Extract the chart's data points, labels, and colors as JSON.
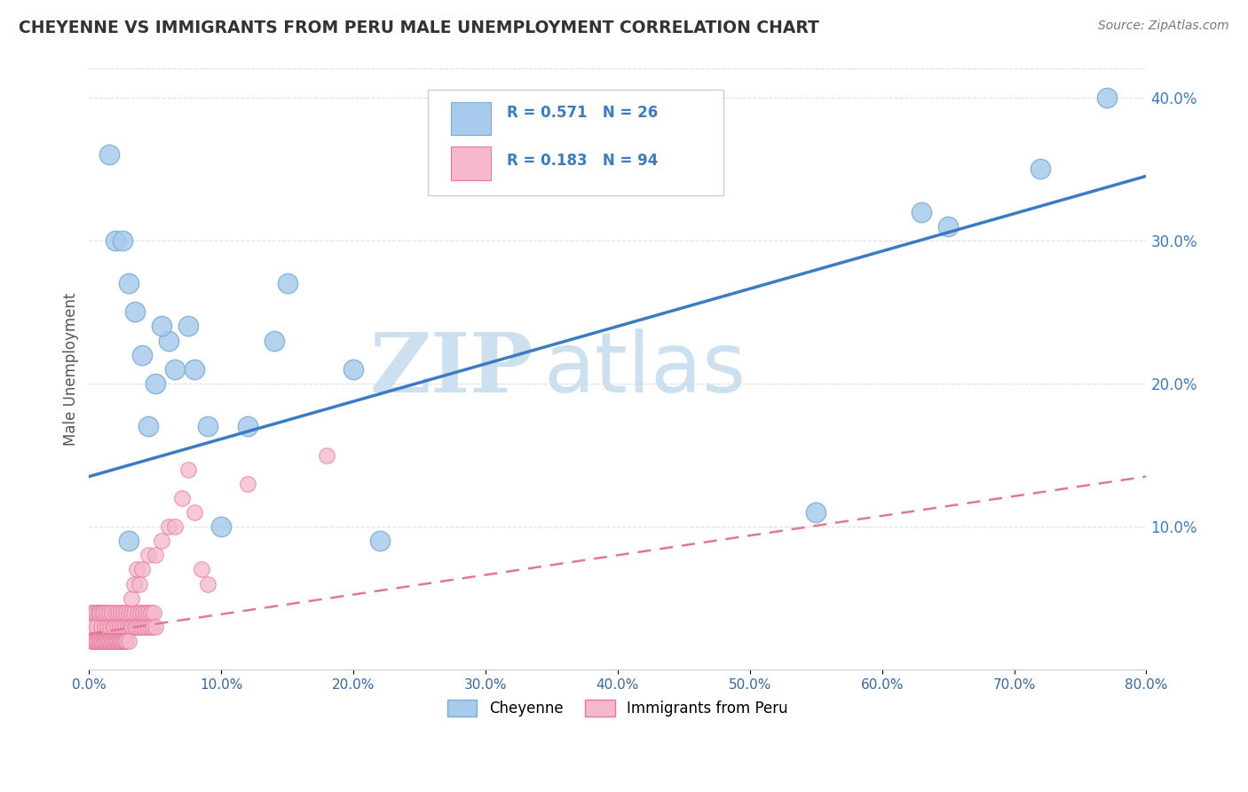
{
  "title": "CHEYENNE VS IMMIGRANTS FROM PERU MALE UNEMPLOYMENT CORRELATION CHART",
  "source": "Source: ZipAtlas.com",
  "ylabel": "Male Unemployment",
  "legend_label1": "Cheyenne",
  "legend_label2": "Immigrants from Peru",
  "R1": 0.571,
  "N1": 26,
  "R2": 0.183,
  "N2": 94,
  "xlim": [
    0.0,
    0.8
  ],
  "ylim": [
    0.0,
    0.42
  ],
  "x_ticks": [
    0.0,
    0.1,
    0.2,
    0.3,
    0.4,
    0.5,
    0.6,
    0.7,
    0.8
  ],
  "y_ticks_right": [
    0.1,
    0.2,
    0.3,
    0.4
  ],
  "background_color": "#ffffff",
  "grid_color": "#cccccc",
  "watermark_zip": "ZIP",
  "watermark_atlas": "atlas",
  "watermark_color": "#cce0f0",
  "blue_color": "#a8caec",
  "blue_edge": "#7aafd4",
  "pink_color": "#f5b8cc",
  "pink_edge": "#e8789a",
  "trendline1_color": "#3a7cc4",
  "trendline2_color": "#e07890",
  "trendline1_y0": 0.135,
  "trendline1_y1": 0.345,
  "trendline2_y0": 0.025,
  "trendline2_y1": 0.135,
  "cheyenne_x": [
    0.015,
    0.02,
    0.025,
    0.03,
    0.035,
    0.04,
    0.05,
    0.06,
    0.065,
    0.08,
    0.09,
    0.14,
    0.2,
    0.22,
    0.55,
    0.63,
    0.65,
    0.72,
    0.77,
    0.03,
    0.045,
    0.055,
    0.075,
    0.1,
    0.12,
    0.15
  ],
  "cheyenne_y": [
    0.36,
    0.3,
    0.3,
    0.27,
    0.25,
    0.22,
    0.2,
    0.23,
    0.21,
    0.21,
    0.17,
    0.23,
    0.21,
    0.09,
    0.11,
    0.32,
    0.31,
    0.35,
    0.4,
    0.09,
    0.17,
    0.24,
    0.24,
    0.1,
    0.17,
    0.27
  ],
  "peru_x": [
    0.002,
    0.003,
    0.004,
    0.005,
    0.006,
    0.007,
    0.008,
    0.009,
    0.01,
    0.011,
    0.012,
    0.013,
    0.014,
    0.015,
    0.016,
    0.017,
    0.018,
    0.019,
    0.02,
    0.021,
    0.022,
    0.023,
    0.024,
    0.025,
    0.026,
    0.027,
    0.028,
    0.029,
    0.03,
    0.031,
    0.032,
    0.033,
    0.034,
    0.035,
    0.036,
    0.037,
    0.038,
    0.039,
    0.04,
    0.041,
    0.042,
    0.043,
    0.044,
    0.045,
    0.046,
    0.047,
    0.048,
    0.049,
    0.05,
    0.002,
    0.003,
    0.004,
    0.005,
    0.006,
    0.007,
    0.008,
    0.009,
    0.01,
    0.011,
    0.012,
    0.013,
    0.014,
    0.015,
    0.016,
    0.017,
    0.018,
    0.019,
    0.02,
    0.021,
    0.022,
    0.023,
    0.024,
    0.025,
    0.026,
    0.027,
    0.028,
    0.03,
    0.032,
    0.034,
    0.036,
    0.038,
    0.04,
    0.045,
    0.05,
    0.055,
    0.06,
    0.065,
    0.07,
    0.075,
    0.08,
    0.085,
    0.09,
    0.12,
    0.18
  ],
  "peru_y": [
    0.04,
    0.03,
    0.04,
    0.04,
    0.03,
    0.04,
    0.04,
    0.03,
    0.04,
    0.04,
    0.03,
    0.04,
    0.03,
    0.04,
    0.03,
    0.04,
    0.03,
    0.03,
    0.04,
    0.03,
    0.04,
    0.03,
    0.04,
    0.03,
    0.04,
    0.03,
    0.04,
    0.03,
    0.04,
    0.03,
    0.04,
    0.03,
    0.04,
    0.03,
    0.03,
    0.04,
    0.03,
    0.04,
    0.03,
    0.04,
    0.03,
    0.04,
    0.03,
    0.04,
    0.03,
    0.04,
    0.03,
    0.04,
    0.03,
    0.02,
    0.02,
    0.02,
    0.02,
    0.02,
    0.02,
    0.02,
    0.02,
    0.02,
    0.02,
    0.02,
    0.02,
    0.02,
    0.02,
    0.02,
    0.02,
    0.02,
    0.02,
    0.02,
    0.02,
    0.02,
    0.02,
    0.02,
    0.02,
    0.02,
    0.02,
    0.02,
    0.02,
    0.05,
    0.06,
    0.07,
    0.06,
    0.07,
    0.08,
    0.08,
    0.09,
    0.1,
    0.1,
    0.12,
    0.14,
    0.11,
    0.07,
    0.06,
    0.13,
    0.15
  ]
}
